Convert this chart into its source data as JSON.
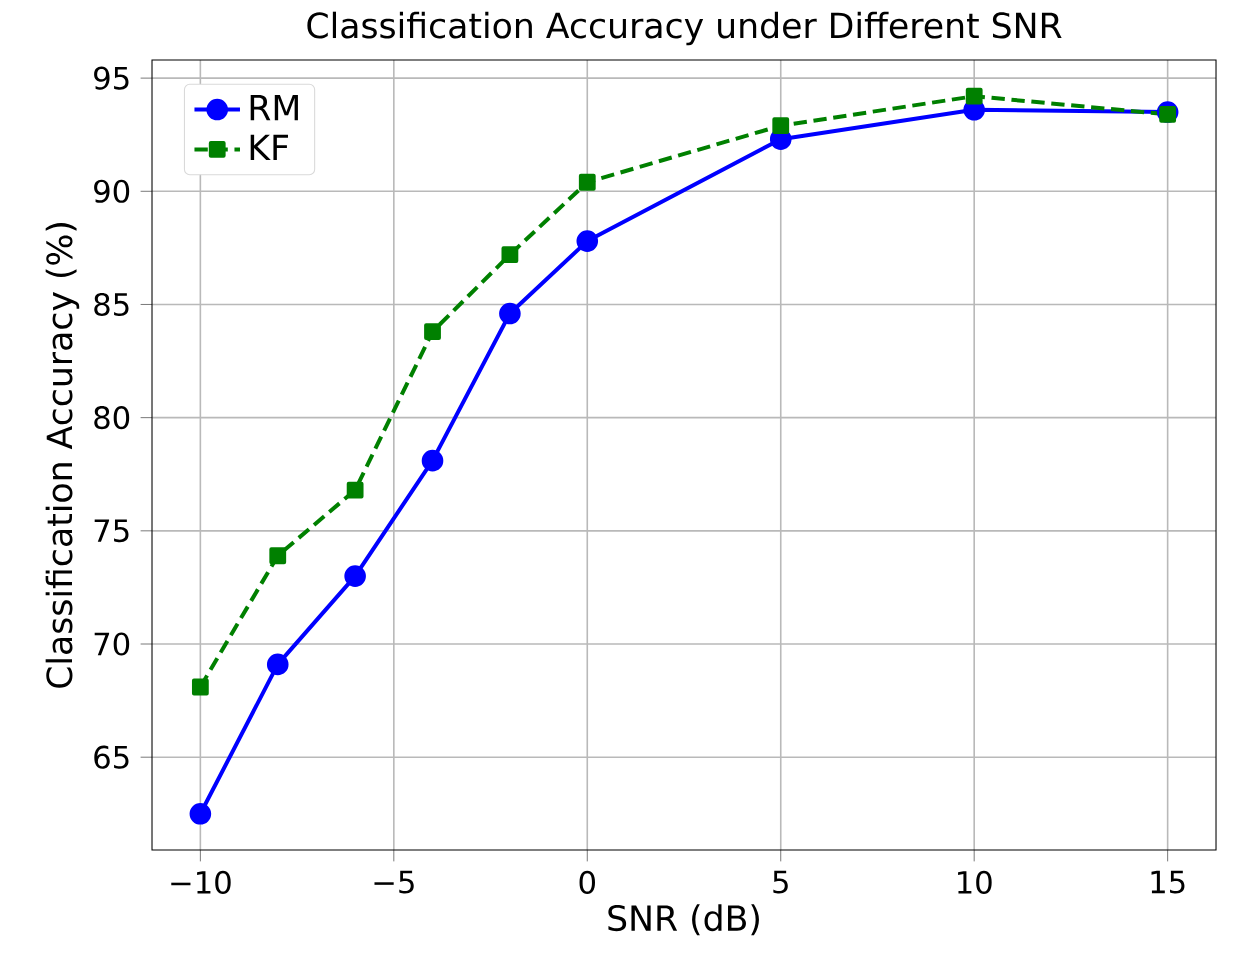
{
  "chart_data": {
    "type": "line",
    "title": "Classification Accuracy under Different SNR",
    "xlabel": "SNR (dB)",
    "ylabel": "Classification Accuracy (%)",
    "x": [
      -10,
      -8,
      -6,
      -4,
      -2,
      0,
      5,
      10,
      15
    ],
    "series": [
      {
        "name": "RM",
        "color": "#0000ff",
        "marker": "circle",
        "line_style": "solid",
        "values": [
          62.5,
          69.1,
          73.0,
          78.1,
          84.6,
          87.8,
          92.3,
          93.6,
          93.5
        ]
      },
      {
        "name": "KF",
        "color": "#008000",
        "marker": "square",
        "line_style": "dashed",
        "values": [
          68.1,
          73.9,
          76.8,
          83.8,
          87.2,
          90.4,
          92.9,
          94.2,
          93.4
        ]
      }
    ],
    "xlim": [
      -11.25,
      16.25
    ],
    "ylim": [
      60.9,
      95.8
    ],
    "xticks": [
      {
        "value": -10,
        "label": "−10"
      },
      {
        "value": -5,
        "label": "−5"
      },
      0,
      5,
      10,
      15
    ],
    "yticks": [
      65,
      70,
      75,
      80,
      85,
      90,
      95
    ],
    "grid": true,
    "legend": "top left"
  }
}
